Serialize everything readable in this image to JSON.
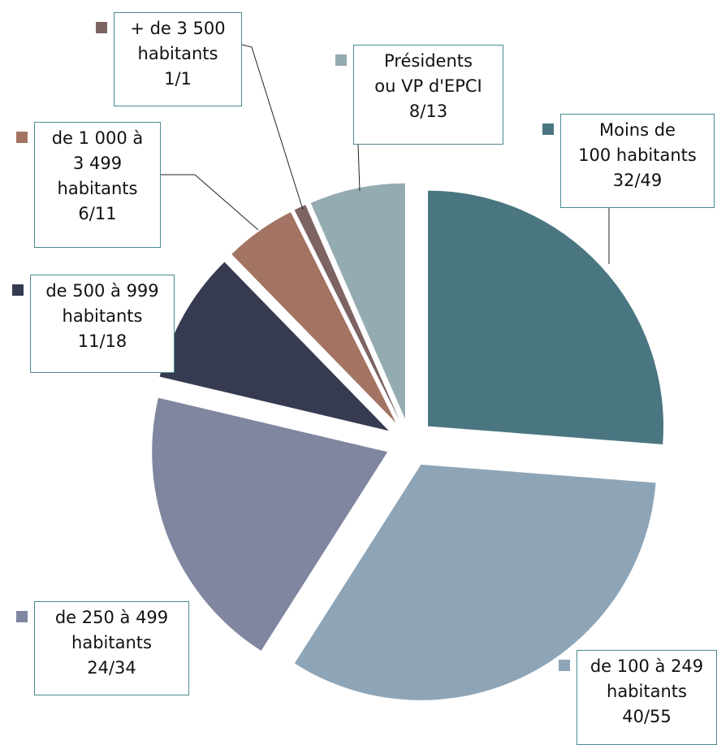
{
  "chart_data": {
    "type": "pie",
    "categories": [
      "Moins de\n100 habitants",
      "de 100 à 249\nhabitants",
      "de 250 à 499\nhabitants",
      "de 500 à 999\nhabitants",
      "de 1 000 à\n3 499\nhabitants",
      "+ de 3 500\nhabitants",
      "Présidents\nou VP d'EPCI"
    ],
    "values": [
      32,
      40,
      24,
      11,
      6,
      1,
      8
    ],
    "value_labels": [
      "32/49",
      "40/55",
      "24/34",
      "11/18",
      "6/11",
      "1/1",
      "8/13"
    ],
    "colors": [
      "#4a7681",
      "#8ea5b7",
      "#8085a0",
      "#363b51",
      "#a37463",
      "#7d6462",
      "#95abb2"
    ]
  }
}
